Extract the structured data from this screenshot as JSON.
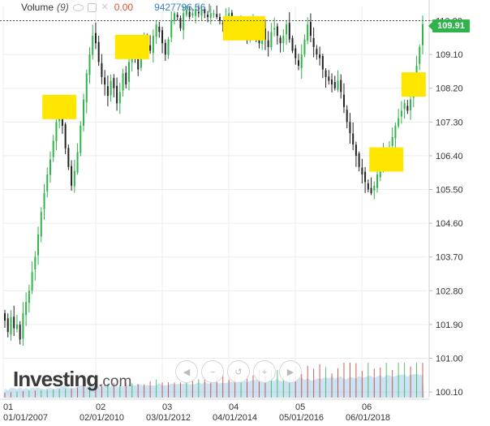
{
  "header": {
    "indicator_name": "Volume",
    "indicator_period": "(9)",
    "volume_value_1": "0.00",
    "volume_value_2": "9427796.56",
    "cursor": "|"
  },
  "last_price": "109.91",
  "logo": {
    "main": "Investing",
    "suffix": ".com"
  },
  "colors": {
    "up": "#2fb34a",
    "down": "#e0523b",
    "candle": "#222222",
    "highlight": "#ffe600",
    "volume": "#8fc2e6",
    "grid": "#ececec"
  },
  "controls": [
    "scroll-left-icon",
    "zoom-out-icon",
    "reset-icon",
    "zoom-in-icon",
    "scroll-right-icon"
  ],
  "chart_data": {
    "type": "candlestick",
    "title": "",
    "x_ticks_top": [
      "01",
      "02",
      "03",
      "04",
      "05",
      "06"
    ],
    "x_ticks_bottom": [
      "01/01/2007",
      "02/01/2010",
      "03/01/2012",
      "04/01/2014",
      "05/01/2016",
      "06/01/2018"
    ],
    "y_ticks": [
      "110.00",
      "109.10",
      "108.20",
      "107.30",
      "106.40",
      "105.50",
      "104.60",
      "103.70",
      "102.80",
      "101.90",
      "101.00",
      "100.10"
    ],
    "ylim": [
      99.95,
      110.38
    ],
    "dashed_level": 110.0,
    "last_close": 109.91,
    "closes": [
      102.0,
      101.7,
      102.1,
      101.8,
      101.9,
      101.5,
      102.2,
      102.5,
      102.8,
      103.3,
      103.7,
      104.3,
      104.9,
      105.4,
      105.9,
      106.3,
      106.8,
      107.3,
      107.7,
      107.2,
      106.6,
      106.1,
      105.6,
      106.0,
      106.5,
      107.2,
      107.9,
      108.6,
      109.1,
      109.6,
      109.4,
      108.9,
      108.5,
      108.3,
      108.0,
      108.4,
      108.2,
      107.8,
      108.1,
      108.6,
      108.3,
      108.9,
      109.3,
      109.0,
      108.7,
      109.1,
      109.5,
      109.4,
      109.2,
      109.6,
      109.9,
      109.7,
      109.4,
      109.1,
      109.5,
      110.0,
      110.2,
      110.1,
      109.8,
      110.2,
      110.3,
      110.1,
      110.2,
      110.3,
      110.2,
      110.3,
      110.2,
      110.1,
      110.2,
      110.2,
      110.1,
      110.0,
      109.9,
      110.1,
      110.2,
      110.0,
      109.9,
      109.8,
      110.0,
      109.8,
      109.5,
      109.7,
      109.9,
      109.6,
      109.4,
      109.8,
      109.5,
      109.3,
      109.7,
      109.8,
      109.6,
      109.4,
      109.6,
      109.9,
      109.5,
      109.2,
      109.0,
      108.8,
      109.1,
      109.5,
      109.9,
      109.6,
      109.3,
      109.1,
      109.0,
      108.7,
      108.5,
      108.4,
      108.3,
      108.2,
      108.4,
      108.1,
      107.7,
      107.3,
      107.0,
      106.7,
      106.4,
      106.1,
      105.9,
      105.7,
      105.5,
      105.4,
      105.6,
      105.9,
      106.2,
      106.5,
      106.3,
      106.6,
      106.9,
      107.2,
      107.4,
      107.6,
      107.8,
      107.6,
      107.9,
      108.3,
      108.8,
      109.3,
      109.91
    ]
  }
}
